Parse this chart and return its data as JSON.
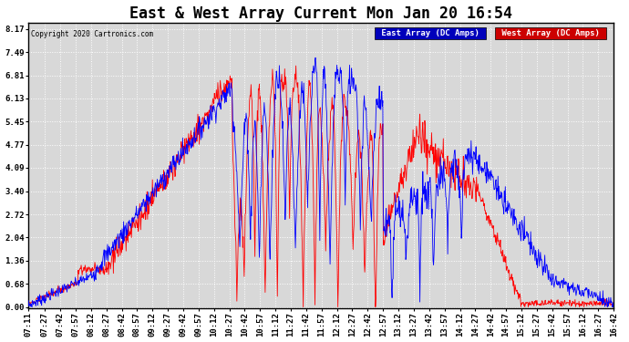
{
  "title": "East & West Array Current Mon Jan 20 16:54",
  "copyright": "Copyright 2020 Cartronics.com",
  "series": [
    "East Array (DC Amps)",
    "West Array (DC Amps)"
  ],
  "series_colors": [
    "blue",
    "red"
  ],
  "yticks": [
    0.0,
    0.68,
    1.36,
    2.04,
    2.72,
    3.4,
    4.09,
    4.77,
    5.45,
    6.13,
    6.81,
    7.49,
    8.17
  ],
  "ylim": [
    0.0,
    8.17
  ],
  "xtick_labels": [
    "07:11",
    "07:27",
    "07:42",
    "07:57",
    "08:12",
    "08:27",
    "08:42",
    "08:57",
    "09:12",
    "09:27",
    "09:42",
    "09:57",
    "10:12",
    "10:27",
    "10:42",
    "10:57",
    "11:12",
    "11:27",
    "11:42",
    "11:57",
    "12:12",
    "12:27",
    "12:42",
    "12:57",
    "13:12",
    "13:27",
    "13:42",
    "13:57",
    "14:12",
    "14:27",
    "14:42",
    "14:57",
    "15:12",
    "15:27",
    "15:42",
    "15:57",
    "16:12",
    "16:27",
    "16:42"
  ],
  "background_color": "#ffffff",
  "plot_bg_color": "#d8d8d8",
  "grid_color": "#ffffff",
  "title_fontsize": 12,
  "tick_fontsize": 6.5,
  "legend_east_bg": "#0000bb",
  "legend_west_bg": "#cc0000",
  "legend_text_color": "#ffffff"
}
